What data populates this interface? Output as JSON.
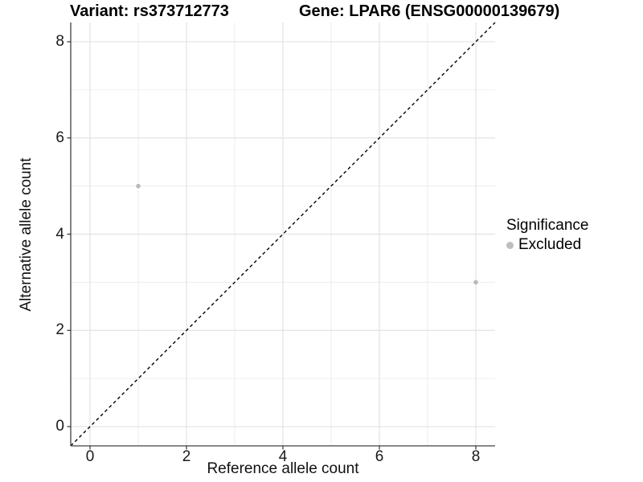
{
  "titles": {
    "variant": "Variant: rs373712773",
    "gene": "Gene: LPAR6 (ENSG00000139679)"
  },
  "legend": {
    "title": "Significance",
    "items": [
      {
        "label": "Excluded",
        "color": "#bebebe"
      }
    ]
  },
  "chart_data": {
    "type": "scatter",
    "title": "Variant: rs373712773 | Gene: LPAR6 (ENSG00000139679)",
    "xlabel": "Reference allele count",
    "ylabel": "Alternative allele count",
    "xlim": [
      -0.4,
      8.4
    ],
    "ylim": [
      -0.4,
      8.4
    ],
    "x_ticks": [
      0,
      2,
      4,
      6,
      8
    ],
    "y_ticks": [
      0,
      2,
      4,
      6,
      8
    ],
    "x_minor_gridlines": [
      1,
      3,
      5,
      7
    ],
    "y_minor_gridlines": [
      1,
      3,
      5,
      7
    ],
    "grid": "major+minor",
    "legend_position": "right",
    "series": [
      {
        "name": "Excluded",
        "color": "#b9b9b9",
        "points": [
          {
            "x": 1,
            "y": 5
          },
          {
            "x": 8,
            "y": 3
          }
        ]
      }
    ],
    "reference_line": {
      "type": "identity",
      "slope": 1,
      "intercept": 0,
      "style": "dashed",
      "color": "#000000"
    }
  },
  "colors": {
    "background": "#ffffff",
    "major_grid": "#e3e3e3",
    "minor_grid": "#ededed",
    "axis_line": "#404040",
    "tick_mark": "#333333",
    "point": "#b9b9b9"
  }
}
